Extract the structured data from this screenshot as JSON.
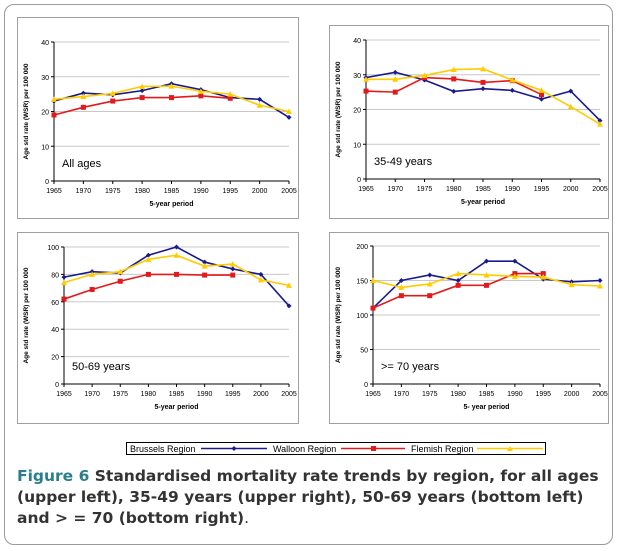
{
  "series_colors": {
    "Brussels Region": "#1a1a8c",
    "Walloon Region": "#e31a1c",
    "Flemish Region": "#ffcc00"
  },
  "legend": [
    {
      "name": "Brussels Region",
      "color": "#1a1a8c",
      "marker": "diamond"
    },
    {
      "name": "Walloon Region",
      "color": "#e31a1c",
      "marker": "square"
    },
    {
      "name": "Flemish Region",
      "color": "#ffcc00",
      "marker": "triangle"
    }
  ],
  "caption": {
    "label": "Figure 6",
    "text": " Standardised mortality rate trends by region, for all ages (upper left), 35-49 years (upper right), 50-69 years (bottom left) and > = 70 (bottom right)",
    "end": "."
  },
  "chart_data": [
    {
      "type": "line",
      "annotation": "All ages",
      "xlabel": "5-year period",
      "ylabel": "Age std rate (WSR) per 100 000",
      "categories": [
        "1965",
        "1970",
        "1975",
        "1980",
        "1985",
        "1990",
        "1995",
        "2000",
        "2005"
      ],
      "ylim": [
        0,
        40
      ],
      "yticks": [
        0,
        10,
        20,
        30,
        40
      ],
      "grid": true,
      "series": [
        {
          "name": "Brussels Region",
          "values": [
            23,
            25.3,
            24.8,
            26,
            28,
            26.3,
            24,
            23.5,
            18.3
          ]
        },
        {
          "name": "Walloon Region",
          "values": [
            19,
            21.2,
            23,
            24,
            24,
            24.5,
            23.8,
            null,
            null
          ]
        },
        {
          "name": "Flemish Region",
          "values": [
            23.5,
            24.3,
            25.2,
            27.2,
            27.3,
            25.8,
            25,
            21.8,
            20
          ]
        }
      ]
    },
    {
      "type": "line",
      "annotation": "35-49 years",
      "xlabel": "5-year period",
      "ylabel": "Age std rate (WSR) per 100 000",
      "categories": [
        "1965",
        "1970",
        "1975",
        "1980",
        "1985",
        "1990",
        "1995",
        "2000",
        "2005"
      ],
      "ylim": [
        0,
        40
      ],
      "yticks": [
        0,
        10,
        20,
        30,
        40
      ],
      "grid": true,
      "series": [
        {
          "name": "Brussels Region",
          "values": [
            29.2,
            30.7,
            28.5,
            25.2,
            26,
            25.5,
            23,
            25.3,
            16.8
          ]
        },
        {
          "name": "Walloon Region",
          "values": [
            25.3,
            25,
            29.2,
            28.8,
            27.8,
            28.3,
            24.3,
            null,
            null
          ]
        },
        {
          "name": "Flemish Region",
          "values": [
            28.7,
            28.7,
            29.8,
            31.5,
            31.7,
            28.5,
            25.5,
            20.8,
            15.8
          ]
        }
      ]
    },
    {
      "type": "line",
      "annotation": "50-69 years",
      "xlabel": "5-year period",
      "ylabel": "Age std rate (WSR) per 100 000",
      "categories": [
        "1965",
        "1970",
        "1975",
        "1980",
        "1985",
        "1990",
        "1995",
        "2000",
        "2005"
      ],
      "ylim": [
        0,
        100
      ],
      "yticks": [
        0,
        20,
        40,
        60,
        80,
        100
      ],
      "grid": true,
      "series": [
        {
          "name": "Brussels Region",
          "values": [
            78,
            82,
            81,
            94,
            100,
            89,
            84,
            80,
            57
          ]
        },
        {
          "name": "Walloon Region",
          "values": [
            62,
            69,
            75,
            80,
            80,
            79.5,
            79.5,
            null,
            null
          ]
        },
        {
          "name": "Flemish Region",
          "values": [
            74,
            80,
            82,
            91,
            94,
            86,
            87.5,
            76,
            72
          ]
        }
      ]
    },
    {
      "type": "line",
      "annotation": ">= 70 years",
      "xlabel": "5- year period",
      "ylabel": "Age std rate (WSR) per 100 000",
      "categories": [
        "1965",
        "1970",
        "1975",
        "1980",
        "1985",
        "1990",
        "1995",
        "2000",
        "2005"
      ],
      "ylim": [
        0,
        200
      ],
      "yticks": [
        0,
        50,
        100,
        150,
        200
      ],
      "grid": true,
      "series": [
        {
          "name": "Brussels Region",
          "values": [
            110,
            150,
            158,
            150,
            178,
            178,
            152,
            148,
            150
          ]
        },
        {
          "name": "Walloon Region",
          "values": [
            110,
            128,
            128,
            143,
            143,
            160,
            160,
            null,
            null
          ]
        },
        {
          "name": "Flemish Region",
          "values": [
            150,
            140,
            145,
            160,
            158,
            156,
            155,
            144,
            142
          ]
        }
      ]
    }
  ]
}
